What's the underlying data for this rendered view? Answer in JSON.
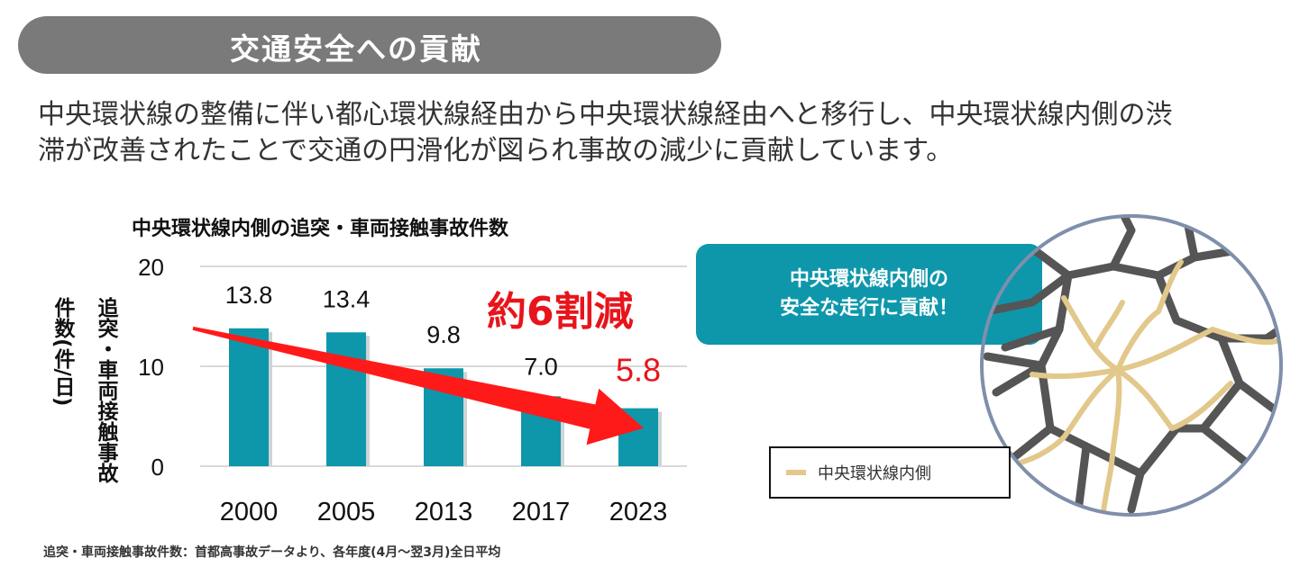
{
  "header": {
    "title": "交通安全への貢献"
  },
  "intro": {
    "line1": "中央環状線の整備に伴い都心環状線経由から中央環状線経由へと移行し、中央環状線内側の渋",
    "line2": "滞が改善されたことで交通の円滑化が図られ事故の減少に貢献しています。"
  },
  "chart_data": {
    "type": "bar",
    "title": "中央環状線内側の追突・車両接触事故件数",
    "ylabel_lines": [
      "追突・車両接触事故",
      "件数(件/日)"
    ],
    "categories": [
      "2000",
      "2005",
      "2013",
      "2017",
      "2023"
    ],
    "values": [
      13.8,
      13.4,
      9.8,
      7.0,
      5.8
    ],
    "value_labels": [
      "13.8",
      "13.4",
      "9.8",
      "7.0",
      "5.8"
    ],
    "highlight_index": 4,
    "yticks": [
      "0",
      "10",
      "20"
    ],
    "ylim": [
      0,
      20
    ],
    "grid": true,
    "bar_color": "#0e97ab",
    "highlight_color": "#e8141b",
    "annotation": "約6割減",
    "source": "追突・車両接触事故件数：首都高事故データより、各年度(4月～翌3月)全日平均"
  },
  "callout": {
    "line1": "中央環状線内側の",
    "line2": "安全な走行に貢献！"
  },
  "legend": {
    "label": "中央環状線内側",
    "color": "#e2c88a"
  },
  "map": {
    "border_color": "#7f8fab",
    "road_color": "#555555",
    "route_color": "#e2c88a"
  }
}
